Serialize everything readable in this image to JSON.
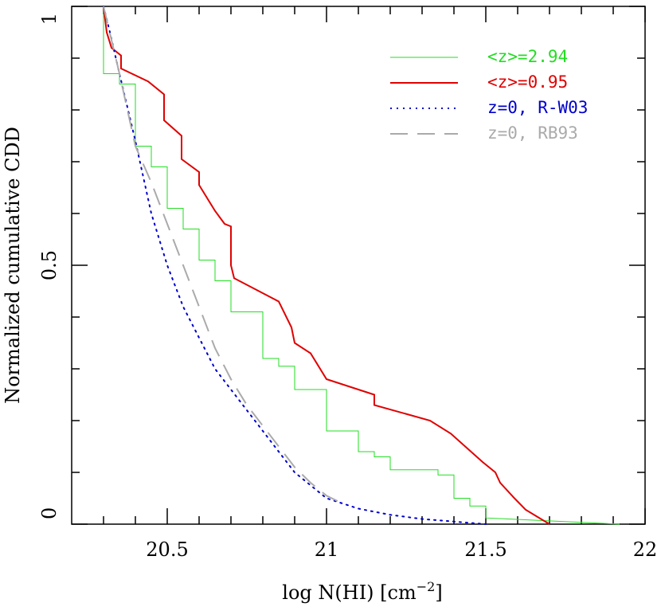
{
  "chart_data": {
    "type": "line",
    "xlabel": {
      "main": "log N(HI) [cm",
      "sup": "−2",
      "end": "]"
    },
    "ylabel": "Normalized cumulative CDD",
    "xlim": [
      20.2,
      22
    ],
    "ylim": [
      0,
      1
    ],
    "xticks": [
      20.5,
      21,
      21.5,
      22
    ],
    "yticks": [
      0,
      0.5,
      1
    ],
    "xminor": [
      20.3,
      20.4,
      20.6,
      20.7,
      20.8,
      20.9,
      21.1,
      21.2,
      21.3,
      21.4,
      21.6,
      21.7,
      21.8,
      21.9
    ],
    "yminor": [
      0.1,
      0.2,
      0.3,
      0.4,
      0.6,
      0.7,
      0.8,
      0.9
    ],
    "legend": "upper right",
    "series": [
      {
        "name": "<z>=2.94",
        "color": "#22dd22",
        "dash": "solid",
        "width": 1,
        "x": [
          20.3,
          20.3,
          20.35,
          20.35,
          20.4,
          20.4,
          20.45,
          20.45,
          20.5,
          20.5,
          20.55,
          20.55,
          20.6,
          20.6,
          20.65,
          20.65,
          20.7,
          20.7,
          20.8,
          20.8,
          20.85,
          20.85,
          20.9,
          20.9,
          21.0,
          21.0,
          21.1,
          21.1,
          21.15,
          21.15,
          21.2,
          21.2,
          21.35,
          21.35,
          21.4,
          21.4,
          21.45,
          21.45,
          21.5,
          21.5,
          21.92
        ],
        "values": [
          1,
          0.87,
          0.87,
          0.85,
          0.85,
          0.73,
          0.73,
          0.69,
          0.69,
          0.61,
          0.61,
          0.57,
          0.57,
          0.51,
          0.51,
          0.47,
          0.47,
          0.41,
          0.41,
          0.32,
          0.32,
          0.305,
          0.305,
          0.26,
          0.26,
          0.18,
          0.18,
          0.14,
          0.14,
          0.13,
          0.13,
          0.105,
          0.105,
          0.095,
          0.095,
          0.05,
          0.05,
          0.035,
          0.035,
          0.012,
          0
        ]
      },
      {
        "name": "<z>=0.95",
        "color": "#e00000",
        "dash": "solid",
        "width": 2,
        "x": [
          20.3,
          20.31,
          20.325,
          20.355,
          20.355,
          20.44,
          20.49,
          20.49,
          20.545,
          20.545,
          20.6,
          20.6,
          20.65,
          20.68,
          20.7,
          20.7,
          20.71,
          20.85,
          20.89,
          20.9,
          20.95,
          21.0,
          21.15,
          21.15,
          21.325,
          21.39,
          21.49,
          21.53,
          21.545,
          21.59,
          21.625,
          21.7
        ],
        "values": [
          1,
          0.95,
          0.92,
          0.905,
          0.88,
          0.855,
          0.83,
          0.78,
          0.75,
          0.705,
          0.68,
          0.655,
          0.605,
          0.58,
          0.575,
          0.5,
          0.475,
          0.43,
          0.38,
          0.35,
          0.33,
          0.28,
          0.25,
          0.23,
          0.2,
          0.175,
          0.12,
          0.1,
          0.08,
          0.05,
          0.028,
          0
        ]
      },
      {
        "name": "z=0, R-W03",
        "color": "#0000cc",
        "dash": "dotted",
        "width": 2,
        "x": [
          20.3,
          20.32,
          20.35,
          20.4,
          20.45,
          20.5,
          20.55,
          20.6,
          20.65,
          20.7,
          20.75,
          20.8,
          20.85,
          20.9,
          20.95,
          21.0,
          21.1,
          21.2,
          21.3,
          21.4,
          21.5
        ],
        "values": [
          1,
          0.95,
          0.87,
          0.74,
          0.6,
          0.5,
          0.42,
          0.36,
          0.3,
          0.26,
          0.22,
          0.18,
          0.14,
          0.1,
          0.075,
          0.05,
          0.03,
          0.018,
          0.01,
          0.005,
          0
        ]
      },
      {
        "name": "z=0, RB93",
        "color": "#aaaaaa",
        "dash": "dashed",
        "width": 2,
        "x": [
          20.3,
          20.35,
          20.4,
          20.45,
          20.5,
          20.55,
          20.6,
          20.65,
          20.7,
          20.75,
          20.8,
          20.85,
          20.9,
          20.95,
          21.0,
          21.05
        ],
        "values": [
          1,
          0.87,
          0.73,
          0.66,
          0.58,
          0.5,
          0.42,
          0.34,
          0.28,
          0.23,
          0.19,
          0.15,
          0.11,
          0.08,
          0.055,
          0.04
        ]
      }
    ]
  }
}
